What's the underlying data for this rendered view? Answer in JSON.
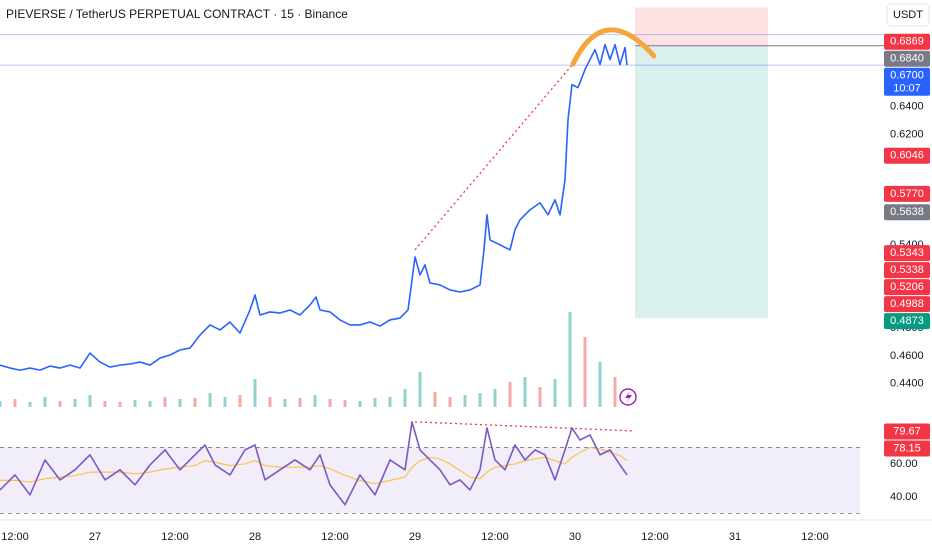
{
  "header": {
    "title": "PIEVERSE / TetherUS PERPETUAL CONTRACT · 15 · Binance",
    "currency": "USDT"
  },
  "chart_data": [
    {
      "type": "line",
      "x": [
        9.75,
        11.25,
        12.75,
        14.25,
        15.75,
        17.25,
        18.75,
        20.25,
        21.75,
        23.25,
        24.75,
        26.25,
        27.75,
        29.25,
        30.75,
        32.25,
        33.75,
        35.25,
        36.75,
        38.25,
        39.75,
        41.25,
        42.75,
        44.25,
        45.75,
        47.25,
        48,
        48.75,
        50.25,
        51.75,
        53.25,
        54.75,
        56.25,
        57.15,
        57.75,
        59.25,
        60.75,
        62.25,
        63.75,
        65.25,
        66.75,
        68.25,
        69.75,
        70.95,
        71.55,
        72,
        72.75,
        73.5,
        74.25,
        75.75,
        77.25,
        78.75,
        80.25,
        81.75,
        82.35,
        82.8,
        83.25,
        84.75,
        86.25,
        87,
        87.75,
        89.25,
        90.75,
        91.95,
        93,
        93.75,
        94.5,
        94.95,
        95.55,
        96.45,
        97.5,
        98.25,
        99,
        99.75,
        100.5,
        101.25,
        102,
        102.75,
        103.5,
        103.8
      ],
      "series": [
        {
          "color": "#2962ff",
          "values": [
            0.4534,
            0.4513,
            0.4498,
            0.4513,
            0.4498,
            0.4527,
            0.4513,
            0.4534,
            0.4513,
            0.4621,
            0.4556,
            0.452,
            0.4534,
            0.4542,
            0.4556,
            0.4534,
            0.4585,
            0.4607,
            0.4643,
            0.4657,
            0.4751,
            0.4824,
            0.4788,
            0.4845,
            0.4766,
            0.4932,
            0.5041,
            0.4896,
            0.4918,
            0.491,
            0.4932,
            0.4896,
            0.4968,
            0.5026,
            0.4932,
            0.4918,
            0.486,
            0.4824,
            0.4824,
            0.4845,
            0.4816,
            0.486,
            0.4874,
            0.4932,
            0.5149,
            0.5315,
            0.5185,
            0.5258,
            0.5127,
            0.5113,
            0.5077,
            0.5062,
            0.5077,
            0.5113,
            0.5366,
            0.5619,
            0.5438,
            0.5402,
            0.5366,
            0.5511,
            0.5583,
            0.5655,
            0.5706,
            0.5619,
            0.5728,
            0.5619,
            0.5872,
            0.6306,
            0.6559,
            0.6537,
            0.6668,
            0.674,
            0.6812,
            0.6704,
            0.6848,
            0.674,
            0.6848,
            0.6704,
            0.6827,
            0.67
          ]
        }
      ],
      "xlim": [
        9.75,
        138.75
      ],
      "xticks": [
        {
          "value": 12,
          "label": "12:00"
        },
        {
          "value": 24,
          "label": "27"
        },
        {
          "value": 36,
          "label": "12:00"
        },
        {
          "value": 48,
          "label": "28"
        },
        {
          "value": 60,
          "label": "12:00"
        },
        {
          "value": 72,
          "label": "29"
        },
        {
          "value": 84,
          "label": "12:00"
        },
        {
          "value": 96,
          "label": "30"
        },
        {
          "value": 108,
          "label": "12:00"
        },
        {
          "value": 120,
          "label": "31"
        },
        {
          "value": 132,
          "label": "12:00"
        }
      ],
      "ylim": [
        0.421,
        0.717
      ],
      "yticks": [
        {
          "value": 0.44,
          "label": "0.4400"
        },
        {
          "value": 0.46,
          "label": "0.4600"
        },
        {
          "value": 0.48,
          "label": "0.4800"
        },
        {
          "value": 0.54,
          "label": "0.5400"
        },
        {
          "value": 0.62,
          "label": "0.6200"
        },
        {
          "value": 0.64,
          "label": "0.6400"
        }
      ],
      "hlines": [
        0.692
      ],
      "price_tags": [
        {
          "value": 0.6869,
          "label": "0.6869",
          "color": "#f23645"
        },
        {
          "value": 0.684,
          "label": "0.6840",
          "color": "#787b86"
        },
        {
          "value": 0.67,
          "label": "0.6700",
          "color": "#2962ff",
          "countdown": "10:07"
        },
        {
          "value": 0.6046,
          "label": "0.6046",
          "color": "#f23645"
        },
        {
          "value": 0.577,
          "label": "0.5770",
          "color": "#f23645"
        },
        {
          "value": 0.5638,
          "label": "0.5638",
          "color": "#787b86"
        },
        {
          "value": 0.5343,
          "label": "0.5343",
          "color": "#f23645"
        },
        {
          "value": 0.5338,
          "label": "0.5338",
          "color": "#f23645"
        },
        {
          "value": 0.5206,
          "label": "0.5206",
          "color": "#f23645"
        },
        {
          "value": 0.4988,
          "label": "0.4988",
          "color": "#f23645"
        },
        {
          "value": 0.4873,
          "label": "0.4873",
          "color": "#089981"
        }
      ],
      "position": {
        "x": [
          105,
          124.95
        ],
        "stop": 0.7116,
        "entry": 0.684,
        "target": 0.4873,
        "stop_color": "#f2364526",
        "target_color": "#08998126"
      },
      "trendline": {
        "x": [
          72,
          96
        ],
        "values": [
          0.5366,
          0.6725
        ],
        "color": "#f23645"
      }
    },
    {
      "type": "bar",
      "x": [
        9.75,
        12,
        14.25,
        16.5,
        18.75,
        21,
        23.25,
        25.5,
        27.75,
        30,
        32.25,
        34.5,
        36.75,
        39,
        41.25,
        43.5,
        45.75,
        48,
        50.25,
        52.5,
        54.75,
        57,
        59.25,
        61.5,
        63.75,
        66,
        68.25,
        70.5,
        72.75,
        75,
        77.25,
        79.5,
        81.75,
        84,
        86.25,
        88.5,
        90.75,
        93,
        95.25,
        97.5,
        99.75,
        102
      ],
      "values": [
        6,
        8,
        5,
        10,
        6,
        8,
        12,
        6,
        5,
        7,
        6,
        10,
        8,
        9,
        14,
        10,
        12,
        28,
        10,
        8,
        9,
        12,
        8,
        7,
        6,
        9,
        10,
        18,
        35,
        15,
        10,
        12,
        14,
        18,
        25,
        30,
        20,
        28,
        95,
        70,
        45,
        30
      ],
      "up": [
        true,
        false,
        true,
        true,
        false,
        true,
        true,
        false,
        false,
        true,
        true,
        false,
        true,
        false,
        true,
        true,
        false,
        true,
        false,
        true,
        false,
        true,
        false,
        false,
        true,
        true,
        true,
        true,
        true,
        false,
        false,
        true,
        true,
        true,
        false,
        true,
        false,
        true,
        true,
        false,
        true,
        false
      ],
      "colors": {
        "up": "#26a69a80",
        "down": "#ef535080"
      },
      "ylim": [
        0,
        100
      ]
    },
    {
      "type": "line",
      "x": [
        9.75,
        12,
        14.25,
        16.5,
        18.75,
        21,
        23.25,
        25.5,
        27.75,
        30,
        32.25,
        34.5,
        36.75,
        39,
        40.5,
        42,
        44.25,
        46.5,
        48,
        49.5,
        51.75,
        54,
        56.25,
        57.75,
        59.25,
        61.5,
        63.75,
        66,
        68.25,
        70.5,
        71.55,
        72.75,
        74.25,
        75.75,
        77.25,
        78.75,
        80.25,
        81.75,
        82.8,
        84,
        85.5,
        87,
        88.5,
        90,
        91.5,
        93,
        94.5,
        95.55,
        96.75,
        98.25,
        99.75,
        101.25,
        102.75,
        103.8
      ],
      "series": [
        {
          "color": "#7e57c2",
          "values": [
            44.2,
            53.3,
            41.2,
            62.4,
            50.3,
            56.4,
            65.5,
            50.3,
            56.4,
            47.3,
            59.4,
            68.5,
            56.4,
            65.5,
            71.5,
            59.4,
            53.3,
            68.5,
            71.5,
            50.3,
            56.4,
            62.4,
            56.4,
            65.5,
            47.3,
            35.2,
            53.3,
            41.2,
            62.4,
            56.4,
            85.5,
            68.5,
            62.4,
            56.4,
            47.3,
            50.3,
            44.2,
            56.4,
            81.8,
            62.4,
            56.4,
            71.5,
            62.4,
            68.5,
            65.5,
            50.3,
            68.5,
            81.8,
            74.5,
            77.6,
            65.5,
            68.5,
            59.4,
            53.3
          ]
        },
        {
          "color": "#f7c548",
          "values": [
            50,
            50,
            49,
            51,
            52,
            53,
            55,
            55,
            55,
            54,
            55,
            57,
            58,
            59,
            62,
            61,
            59,
            60,
            62,
            59,
            58,
            58,
            58,
            59,
            57,
            53,
            50,
            48,
            50,
            52,
            58,
            62,
            64,
            63,
            60,
            56,
            52,
            51,
            55,
            58,
            59,
            60,
            62,
            63,
            64,
            62,
            60,
            64,
            67,
            70,
            69,
            67,
            65,
            62
          ]
        }
      ],
      "ylim": [
        29,
        91.5
      ],
      "yticks": [
        {
          "value": 40,
          "label": "40.00"
        },
        {
          "value": 60,
          "label": "60.00"
        }
      ],
      "band": [
        30,
        70
      ],
      "tags": [
        {
          "value": 79.67,
          "label": "79.67",
          "color": "#f23645"
        },
        {
          "value": 78.15,
          "label": "78.15",
          "color": "#f23645"
        }
      ],
      "trendline": {
        "x": [
          72,
          105
        ],
        "values": [
          85.5,
          80
        ],
        "color": "#f23645"
      }
    }
  ]
}
